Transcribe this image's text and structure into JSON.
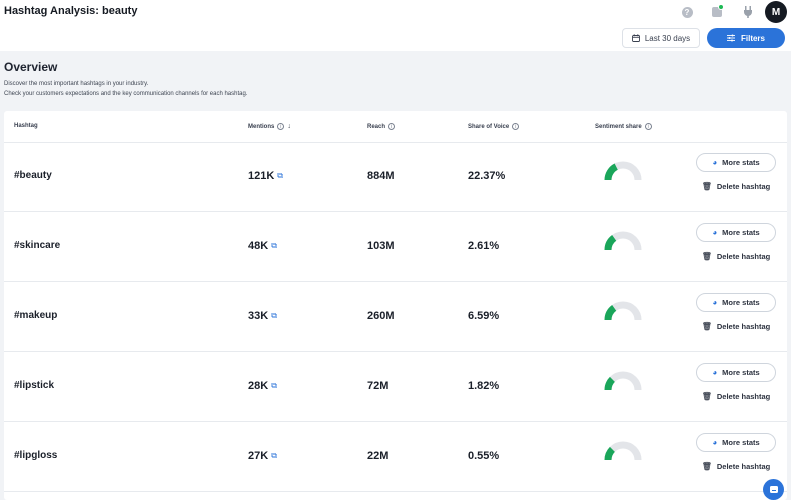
{
  "header": {
    "title": "Hashtag Analysis: beauty",
    "avatar_initial": "M",
    "help_glyph": "?"
  },
  "toolbar": {
    "date_label": "Last 30 days",
    "filters_label": "Filters"
  },
  "overview": {
    "title": "Overview",
    "desc1": "Discover the most important hashtags in your industry.",
    "desc2": "Check your customers expectations and the key communication channels for each hashtag."
  },
  "table": {
    "columns": {
      "hashtag": "Hashtag",
      "mentions": "Mentions",
      "reach": "Reach",
      "sov": "Share of Voice",
      "sentiment": "Sentiment share"
    },
    "more_stats_label": "More stats",
    "delete_label": "Delete hashtag",
    "rows": [
      {
        "tag": "#beauty",
        "mentions": "121K",
        "reach": "884M",
        "sov": "22.37%",
        "positive_share": 0.35
      },
      {
        "tag": "#skincare",
        "mentions": "48K",
        "reach": "103M",
        "sov": "2.61%",
        "positive_share": 0.3
      },
      {
        "tag": "#makeup",
        "mentions": "33K",
        "reach": "260M",
        "sov": "6.59%",
        "positive_share": 0.3
      },
      {
        "tag": "#lipstick",
        "mentions": "28K",
        "reach": "72M",
        "sov": "1.82%",
        "positive_share": 0.25
      },
      {
        "tag": "#lipgloss",
        "mentions": "27K",
        "reach": "22M",
        "sov": "0.55%",
        "positive_share": 0.25
      }
    ]
  },
  "colors": {
    "accent": "#2b73d9",
    "positive": "#1aa65a",
    "neutral": "#e3e5e9"
  }
}
